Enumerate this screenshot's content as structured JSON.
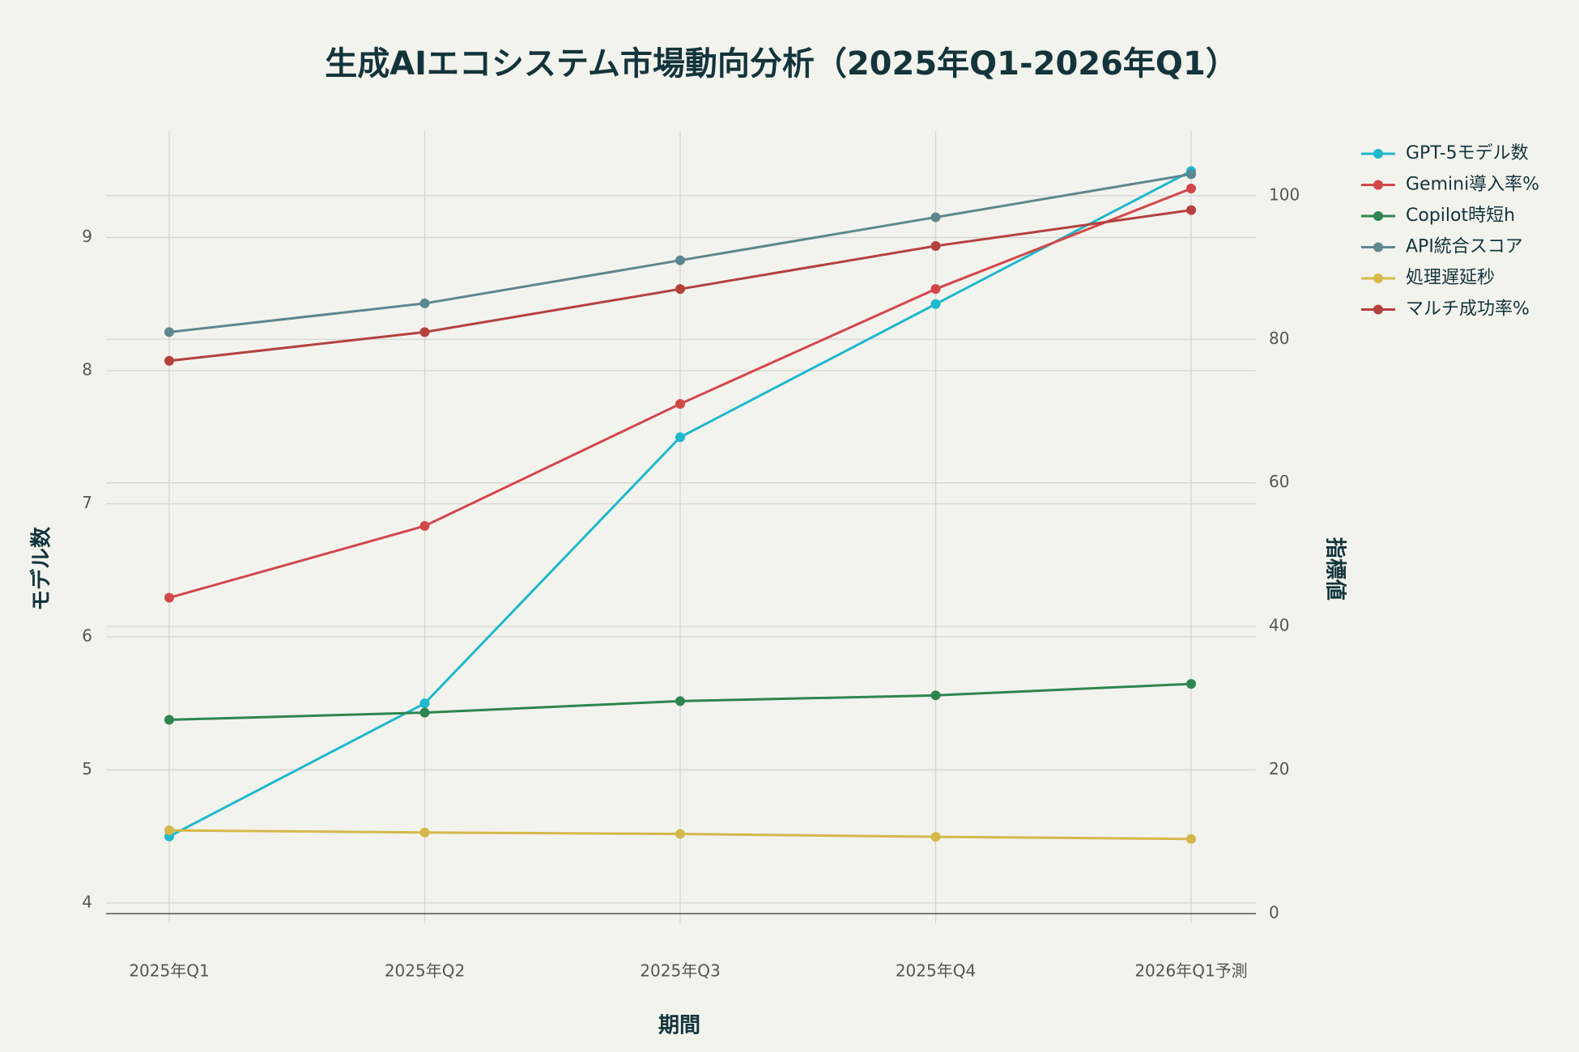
{
  "chart_data": {
    "type": "line",
    "title": "生成AIエコシステム市場動向分析（2025年Q1-2026年Q1）",
    "x_label": "期間",
    "y_label": "モデル数",
    "y2_label": "指標値",
    "categories": [
      "2025年Q1",
      "2025年Q2",
      "2025年Q3",
      "2025年Q4",
      "2026年Q1予測"
    ],
    "ylim": [
      3.92,
      9.8
    ],
    "yticks": [
      4,
      5,
      6,
      7,
      8,
      9
    ],
    "y2lim": [
      0,
      109
    ],
    "y2ticks": [
      0,
      20,
      40,
      60,
      80,
      100
    ],
    "grid": true,
    "legend": "right",
    "series": [
      {
        "name": "GPT-5モデル数",
        "color": "#1fb8cd",
        "values": [
          4.5,
          5.5,
          7.5,
          8.5,
          9.5
        ]
      },
      {
        "name": "Gemini導入率%",
        "color": "#d2474a",
        "axis": "y2",
        "values": [
          44,
          54,
          71,
          87,
          101
        ]
      },
      {
        "name": "Copilot時短h",
        "color": "#2e8550",
        "axis": "y2",
        "values": [
          27,
          28,
          29.6,
          30.4,
          32
        ]
      },
      {
        "name": "API統合スコア",
        "color": "#5d878f",
        "axis": "y2",
        "values": [
          81,
          85,
          91,
          97,
          103
        ]
      },
      {
        "name": "処理遅延秒",
        "color": "#d4b84a",
        "axis": "y2",
        "values": [
          11.6,
          11.3,
          11.1,
          10.7,
          10.4
        ]
      },
      {
        "name": "マルチ成功率%",
        "color": "#b4413c",
        "axis": "y2",
        "values": [
          77,
          81,
          87,
          93,
          98
        ]
      }
    ]
  }
}
